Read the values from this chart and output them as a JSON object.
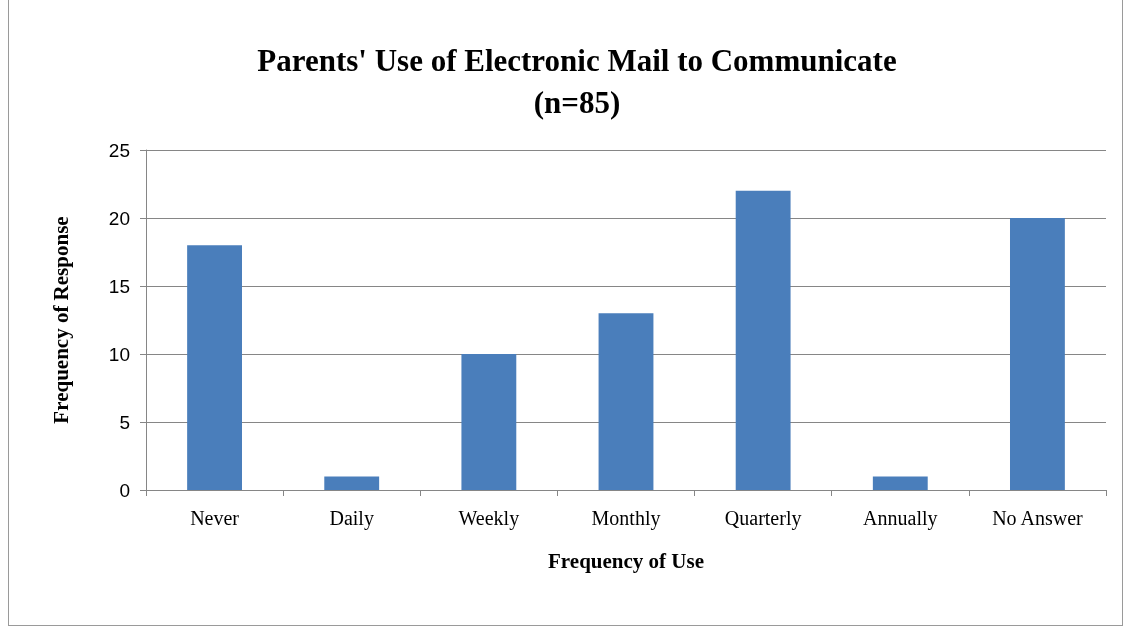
{
  "chart_data": {
    "type": "bar",
    "title": "Parents' Use of Electronic Mail to Communicate\n(n=85)",
    "xlabel": "Frequency of Use",
    "ylabel": "Frequency of Response",
    "categories": [
      "Never",
      "Daily",
      "Weekly",
      "Monthly",
      "Quarterly",
      "Annually",
      "No Answer"
    ],
    "values": [
      18,
      1,
      10,
      13,
      22,
      1,
      20
    ],
    "color": "#4a7ebb",
    "ylim": [
      0,
      25
    ],
    "yticks": [
      0,
      5,
      10,
      15,
      20,
      25
    ],
    "grid": "y"
  }
}
